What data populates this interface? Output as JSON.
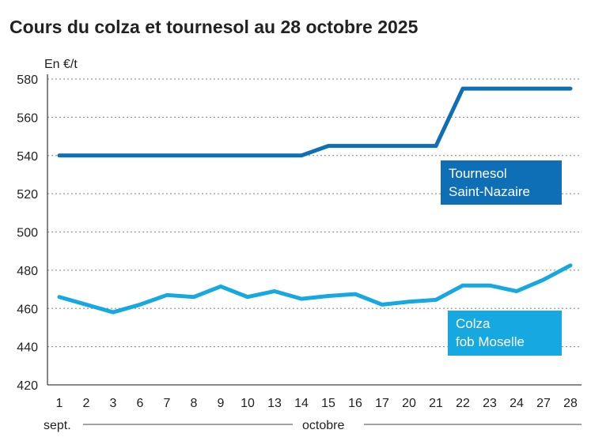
{
  "chart_data": {
    "type": "line",
    "title": "Cours du colza et tournesol au 28 octobre 2025",
    "ylabel": "En €/t",
    "ylim": [
      420,
      580
    ],
    "yticks": [
      420,
      440,
      460,
      480,
      500,
      520,
      540,
      560,
      580
    ],
    "grid": true,
    "categories": [
      "1",
      "2",
      "3",
      "6",
      "7",
      "8",
      "9",
      "10",
      "13",
      "14",
      "15",
      "16",
      "17",
      "20",
      "21",
      "22",
      "23",
      "24",
      "27",
      "28"
    ],
    "month_labels": [
      "sept.",
      "octobre"
    ],
    "series": [
      {
        "name": "Tournesol Saint-Nazaire",
        "label_lines": [
          "Tournesol",
          "Saint-Nazaire"
        ],
        "color": "#0f6fb6",
        "values": [
          540,
          540,
          540,
          540,
          540,
          540,
          540,
          540,
          540,
          540,
          545,
          545,
          545,
          545,
          545,
          575,
          575,
          575,
          575,
          575
        ]
      },
      {
        "name": "Colza fob Moselle",
        "label_lines": [
          "Colza",
          "fob Moselle"
        ],
        "color": "#16a8e1",
        "values": [
          466,
          462,
          458,
          462,
          467,
          466,
          471.5,
          466,
          469,
          465,
          466.5,
          467.5,
          462,
          463.5,
          464.5,
          472,
          472,
          469,
          475,
          482.5
        ]
      }
    ]
  }
}
